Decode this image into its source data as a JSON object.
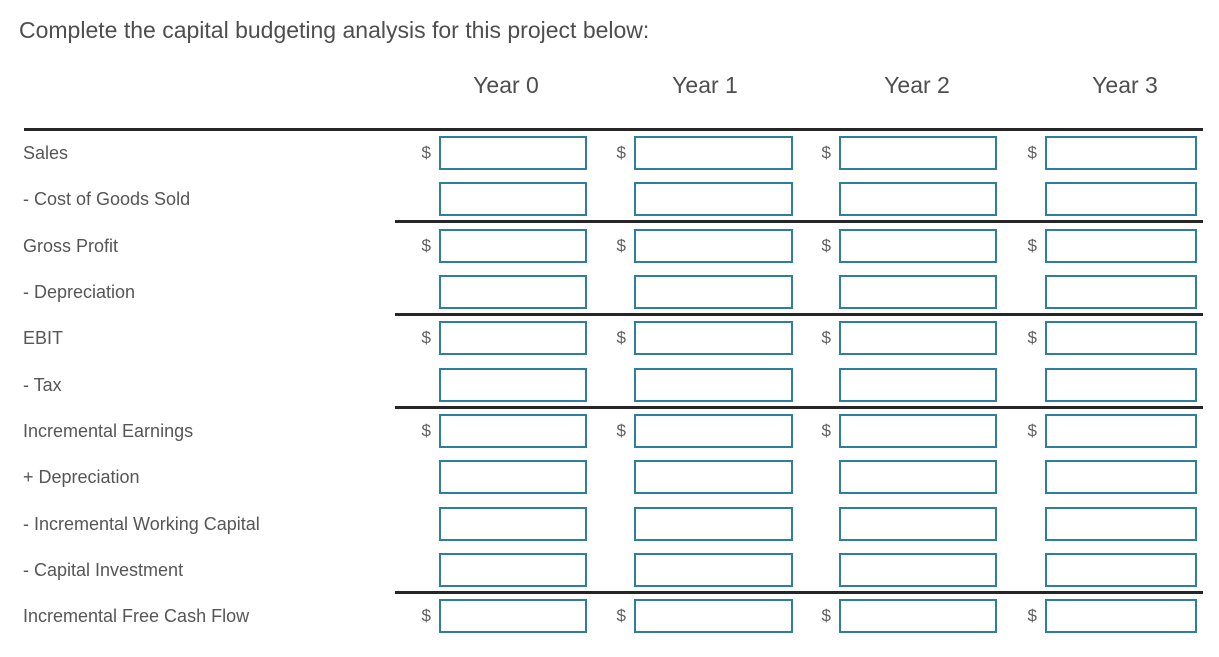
{
  "title": "Complete the capital budgeting analysis for this project below:",
  "currency_symbol": "$",
  "colors": {
    "input_border": "#2e7f9e",
    "rule_line": "#262626",
    "text": "#4e4e4e",
    "label_text": "#565656"
  },
  "table": {
    "columns": [
      "Year 0",
      "Year 1",
      "Year 2",
      "Year 3"
    ],
    "rows": [
      {
        "id": "sales",
        "label": "Sales",
        "dollar": true,
        "rule_below": false
      },
      {
        "id": "cost-of-goods-sold",
        "label": "- Cost of Goods Sold",
        "dollar": false,
        "rule_below": true
      },
      {
        "id": "gross-profit",
        "label": "Gross Profit",
        "dollar": true,
        "rule_below": false
      },
      {
        "id": "depreciation",
        "label": "- Depreciation",
        "dollar": false,
        "rule_below": true
      },
      {
        "id": "ebit",
        "label": "EBIT",
        "dollar": true,
        "rule_below": false
      },
      {
        "id": "tax",
        "label": "- Tax",
        "dollar": false,
        "rule_below": true
      },
      {
        "id": "incremental-earnings",
        "label": "Incremental Earnings",
        "dollar": true,
        "rule_below": false
      },
      {
        "id": "plus-depreciation",
        "label": "+ Depreciation",
        "dollar": false,
        "rule_below": false
      },
      {
        "id": "incremental-working-capital",
        "label": "- Incremental Working Capital",
        "dollar": false,
        "rule_below": false
      },
      {
        "id": "capital-investment",
        "label": "- Capital Investment",
        "dollar": false,
        "rule_below": true
      },
      {
        "id": "incremental-free-cash-flow",
        "label": "Incremental Free Cash Flow",
        "dollar": true,
        "rule_below": false
      }
    ],
    "input": {
      "value": "",
      "placeholder": ""
    }
  }
}
